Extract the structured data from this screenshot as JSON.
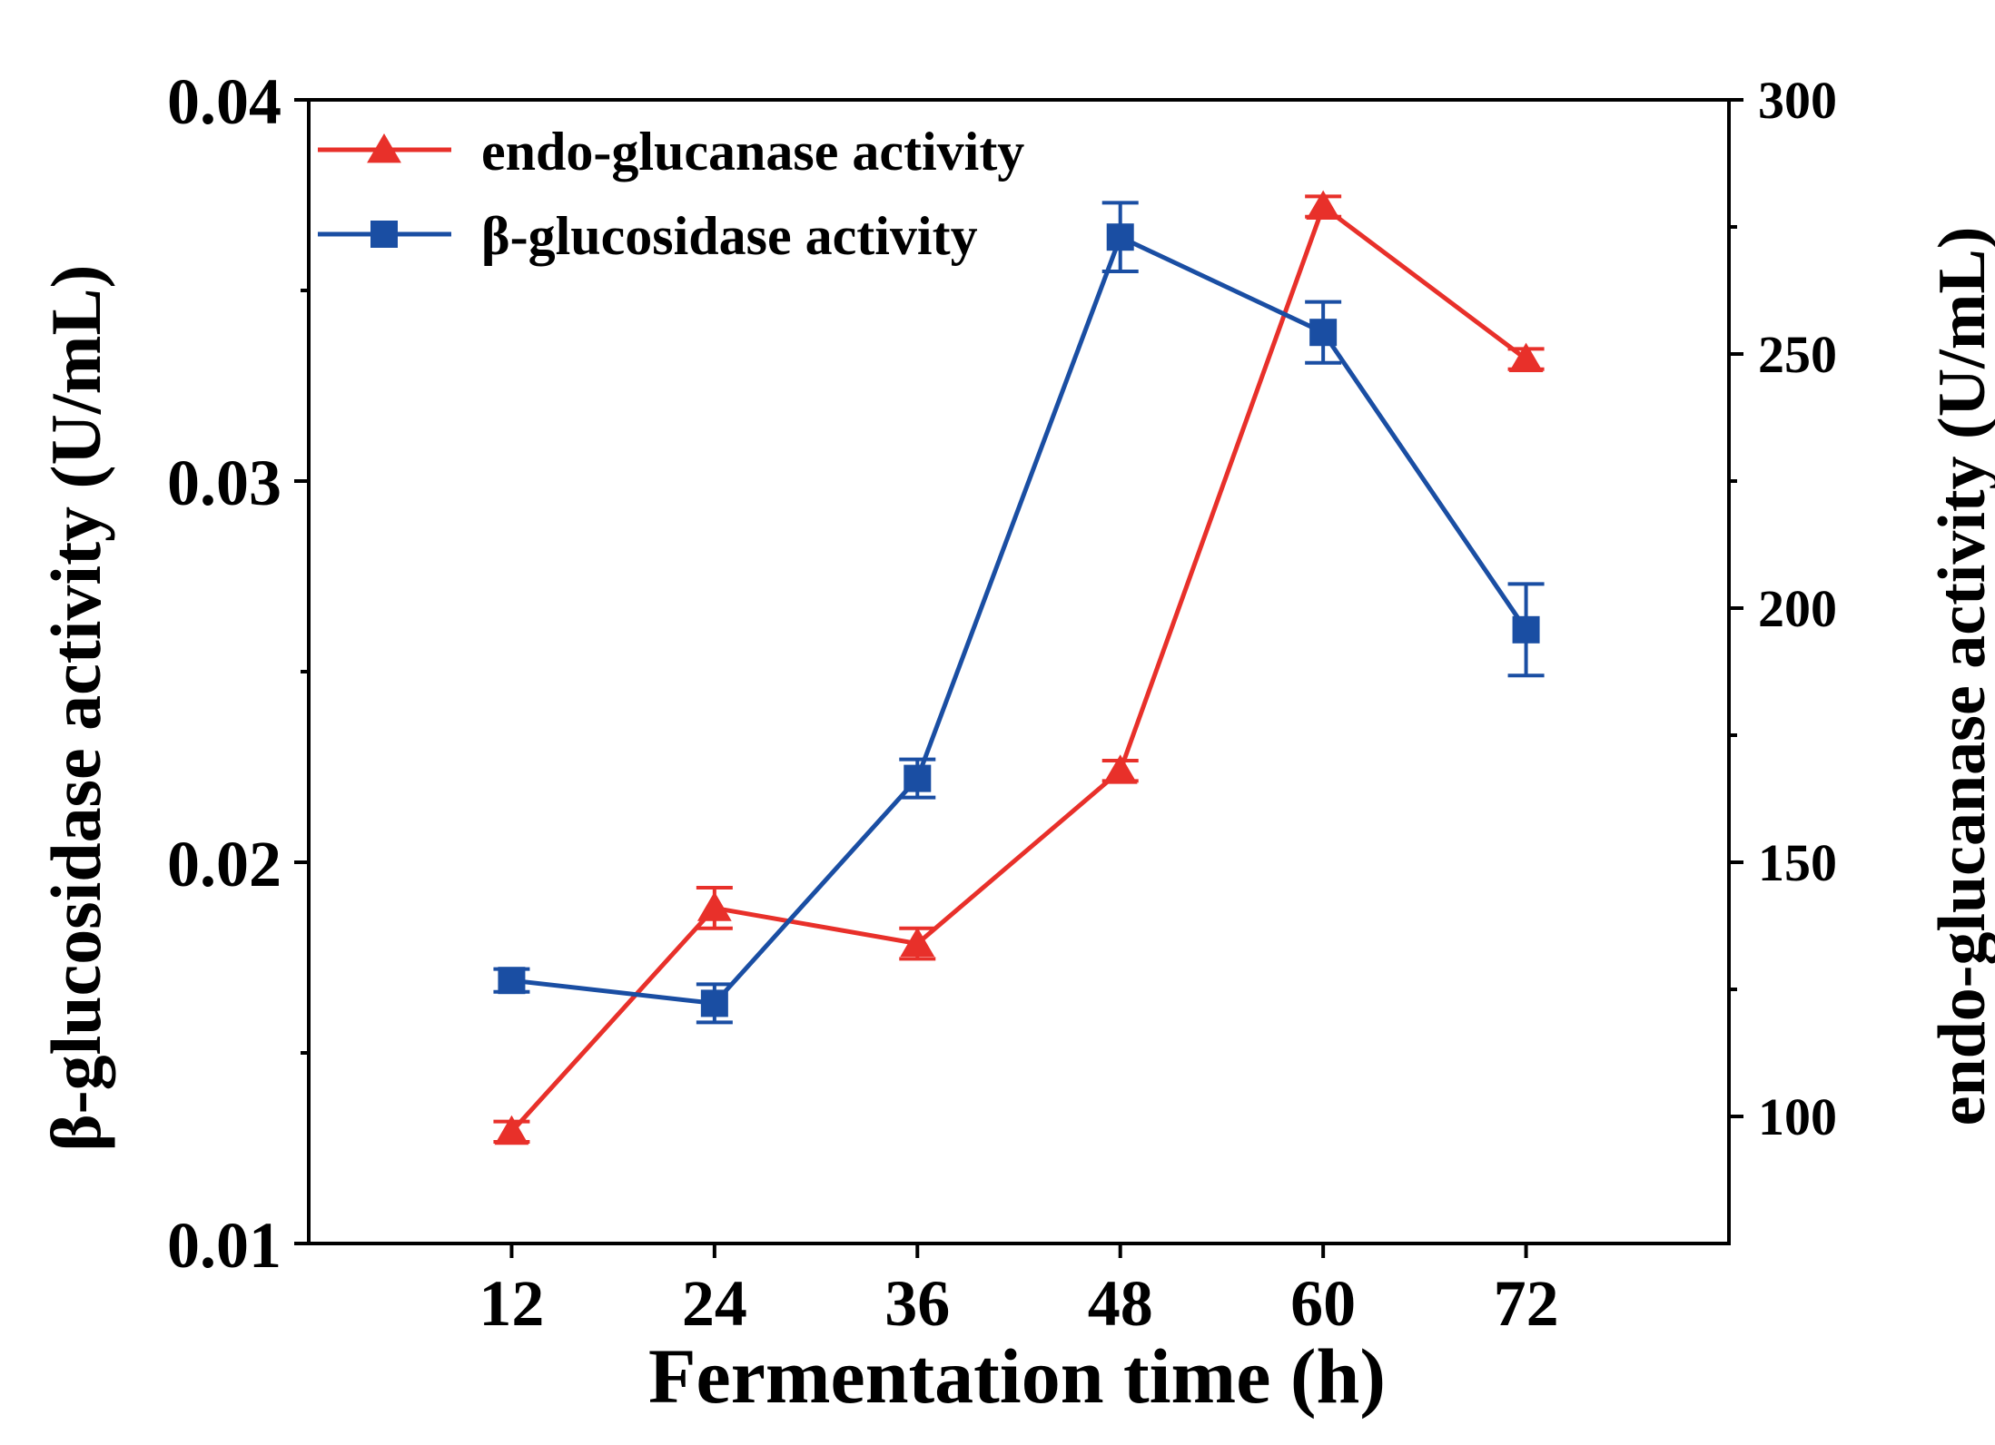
{
  "chart_data": {
    "type": "line",
    "xlabel": "Fermentation time (h)",
    "ylabel_left": "β-glucosidase activity (U/mL)",
    "ylabel_right": "endo-glucanase activity (U/mL)",
    "x": [
      12,
      24,
      36,
      48,
      60,
      72
    ],
    "x_tick_labels": [
      "12",
      "24",
      "36",
      "48",
      "60",
      "72"
    ],
    "xlim": [
      0,
      84
    ],
    "ylim_left": [
      0.01,
      0.04
    ],
    "ylim_right": [
      75,
      300
    ],
    "y_left_ticks": [
      0.01,
      0.02,
      0.03,
      0.04
    ],
    "y_left_tick_labels": [
      "0.01",
      "0.02",
      "0.03",
      "0.04"
    ],
    "y_left_minor_ticks": [
      0.015,
      0.025,
      0.035
    ],
    "y_right_ticks": [
      100,
      150,
      200,
      250,
      300
    ],
    "y_right_tick_labels": [
      "100",
      "150",
      "200",
      "250",
      "300"
    ],
    "y_right_minor_ticks": [
      125,
      175,
      225,
      275
    ],
    "legend_position": "top-left",
    "series": [
      {
        "name": "endo-glucanase activity",
        "axis": "right",
        "color": "#e8302a",
        "marker": "triangle",
        "values": [
          97,
          141,
          134,
          168,
          279,
          249
        ],
        "errors": [
          2,
          4,
          3,
          2,
          2,
          2
        ]
      },
      {
        "name": "β-glucosidase activity",
        "axis": "left",
        "color": "#1a4ea3",
        "marker": "square",
        "values": [
          0.0169,
          0.0163,
          0.0222,
          0.0364,
          0.0339,
          0.0261
        ],
        "errors": [
          0.0003,
          0.0005,
          0.0005,
          0.0009,
          0.0008,
          0.0012
        ]
      }
    ]
  }
}
